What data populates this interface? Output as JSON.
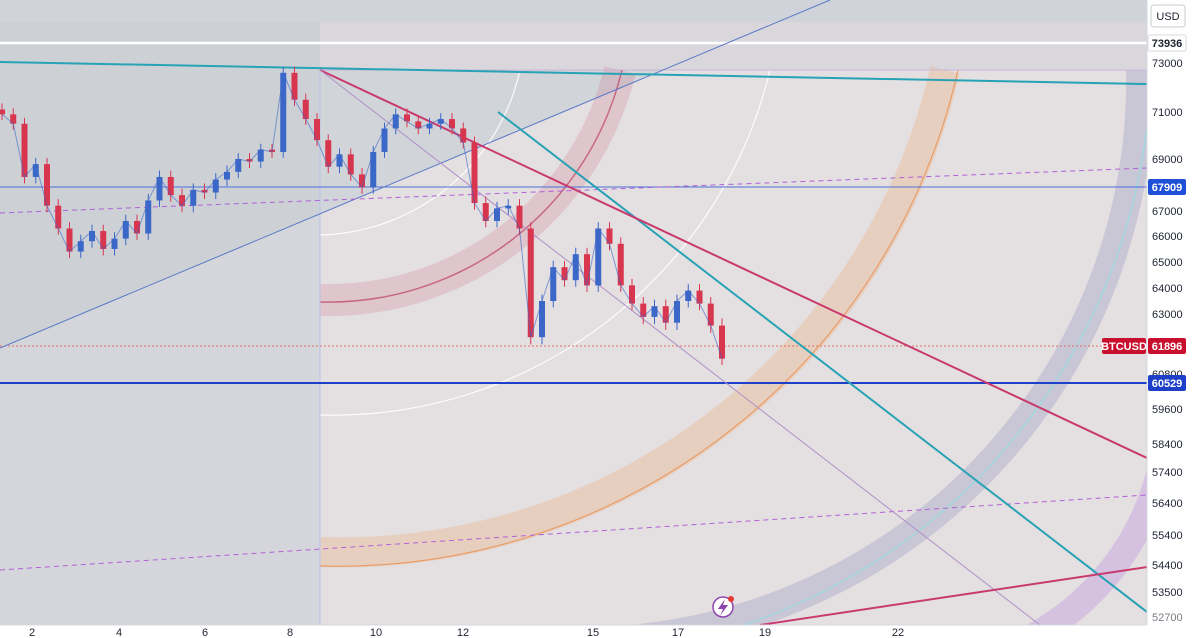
{
  "chart_data": {
    "type": "line",
    "symbol": "BTCUSD",
    "currency_button": "USD",
    "x_ticks": [
      "2",
      "4",
      "6",
      "8",
      "10",
      "12",
      "15",
      "17",
      "19",
      "22"
    ],
    "y_ticks": [
      "73000",
      "71000",
      "69000",
      "67000",
      "66000",
      "65000",
      "64000",
      "63000",
      "60800",
      "59600",
      "58400",
      "57400",
      "56400",
      "55400",
      "54400",
      "53500",
      "52700"
    ],
    "y_ticks_partial": [
      "52700"
    ],
    "ylim": [
      52700,
      73936
    ],
    "price_tags": [
      {
        "label": "73936",
        "value": 73936,
        "color": "#ffffff",
        "text_color": "#1d2330"
      },
      {
        "label": "67909",
        "value": 67909,
        "color": "#1e50d8",
        "text_color": "#ffffff"
      },
      {
        "label": "61896",
        "value": 61896,
        "color": "#c8102e",
        "text_color": "#ffffff",
        "name": "BTCUSD"
      },
      {
        "label": "60529",
        "value": 60529,
        "color": "#1e3fc8",
        "text_color": "#ffffff"
      }
    ],
    "series": [
      {
        "values": [
          70900,
          70500,
          68300,
          68800,
          67200,
          66300,
          65400,
          65800,
          66200,
          65500,
          65900,
          66600,
          66100,
          67400,
          68300,
          67600,
          67200,
          67800,
          67700,
          68200,
          68500,
          69000,
          68900,
          69400,
          69300,
          72600,
          71500,
          70700,
          69800,
          68700,
          69200,
          68400,
          67900,
          69300,
          70300,
          70900,
          70600,
          70300,
          70500,
          70700,
          70300,
          69700,
          67300,
          66600,
          67100,
          67200,
          66300,
          62200,
          63500,
          64800,
          64300,
          65300,
          64100,
          66300,
          65700,
          64100,
          63400,
          62900,
          63300,
          62700,
          63500,
          63900,
          63400,
          62600,
          61400
        ],
        "color": "#3a67c8"
      }
    ],
    "colors": {
      "up_candle": "#3a67c8",
      "down_candle": "#d8364e",
      "teal_line": "#28a3b5",
      "crimson_line": "#c83a6e",
      "dashed_channel": "#b060d8",
      "horizontal_blue": "#1e3fc8",
      "white_line": "#ffffff"
    },
    "grid": false
  }
}
